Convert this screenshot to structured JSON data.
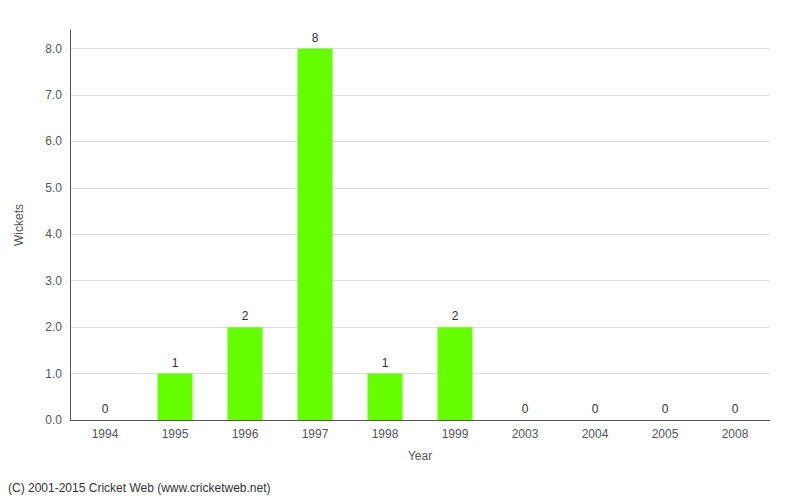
{
  "chart_data": {
    "type": "bar",
    "categories": [
      "1994",
      "1995",
      "1996",
      "1997",
      "1998",
      "1999",
      "2003",
      "2004",
      "2005",
      "2008"
    ],
    "values": [
      0,
      1,
      2,
      8,
      1,
      2,
      0,
      0,
      0,
      0
    ],
    "color": "#66ff00",
    "xlabel": "Year",
    "ylabel": "Wickets",
    "ylim": [
      0.0,
      8.4
    ],
    "yticks": [
      {
        "value": 0.0,
        "label": "0.0"
      },
      {
        "value": 1.0,
        "label": "1.0"
      },
      {
        "value": 2.0,
        "label": "2.0"
      },
      {
        "value": 3.0,
        "label": "3.0"
      },
      {
        "value": 4.0,
        "label": "4.0"
      },
      {
        "value": 5.0,
        "label": "5.0"
      },
      {
        "value": 6.0,
        "label": "6.0"
      },
      {
        "value": 7.0,
        "label": "7.0"
      },
      {
        "value": 8.0,
        "label": "8.0"
      }
    ],
    "data_labels": true,
    "grid": true,
    "annotations": [
      "(C) 2001-2015 Cricket Web (www.cricketweb.net)"
    ]
  }
}
